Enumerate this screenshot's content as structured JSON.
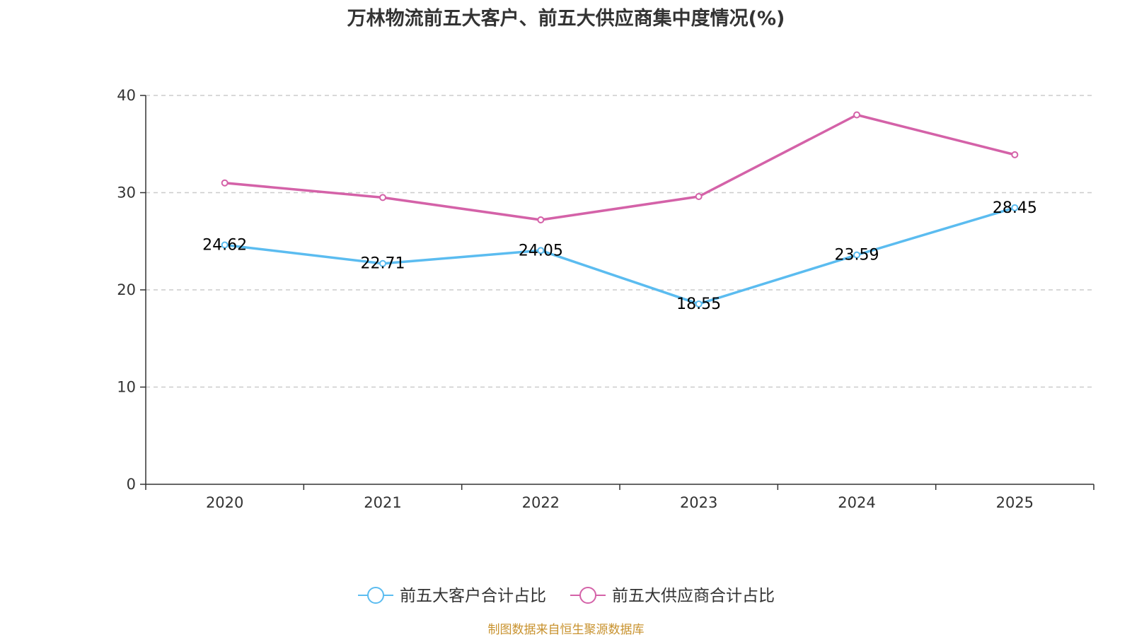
{
  "chart_data": {
    "type": "line",
    "title": "万林物流前五大客户、前五大供应商集中度情况(%)",
    "categories": [
      "2020",
      "2021",
      "2022",
      "2023",
      "2024",
      "2025"
    ],
    "ylim": [
      0,
      40
    ],
    "yticks": [
      0,
      10,
      20,
      30,
      40
    ],
    "grid": true,
    "legend_position": "bottom-center",
    "series": [
      {
        "name": "前五大客户合计占比",
        "color": "#5bbcf0",
        "values": [
          24.62,
          22.71,
          24.05,
          18.55,
          23.59,
          28.45
        ],
        "labels": [
          "24.62",
          "22.71",
          "24.05",
          "18.55",
          "23.59",
          "28.45"
        ],
        "show_labels": true
      },
      {
        "name": "前五大供应商合计占比",
        "color": "#d462a8",
        "values": [
          31.0,
          29.5,
          27.2,
          29.6,
          38.0,
          33.9
        ],
        "show_labels": false
      }
    ]
  },
  "footer": {
    "source": "制图数据来自恒生聚源数据库"
  }
}
